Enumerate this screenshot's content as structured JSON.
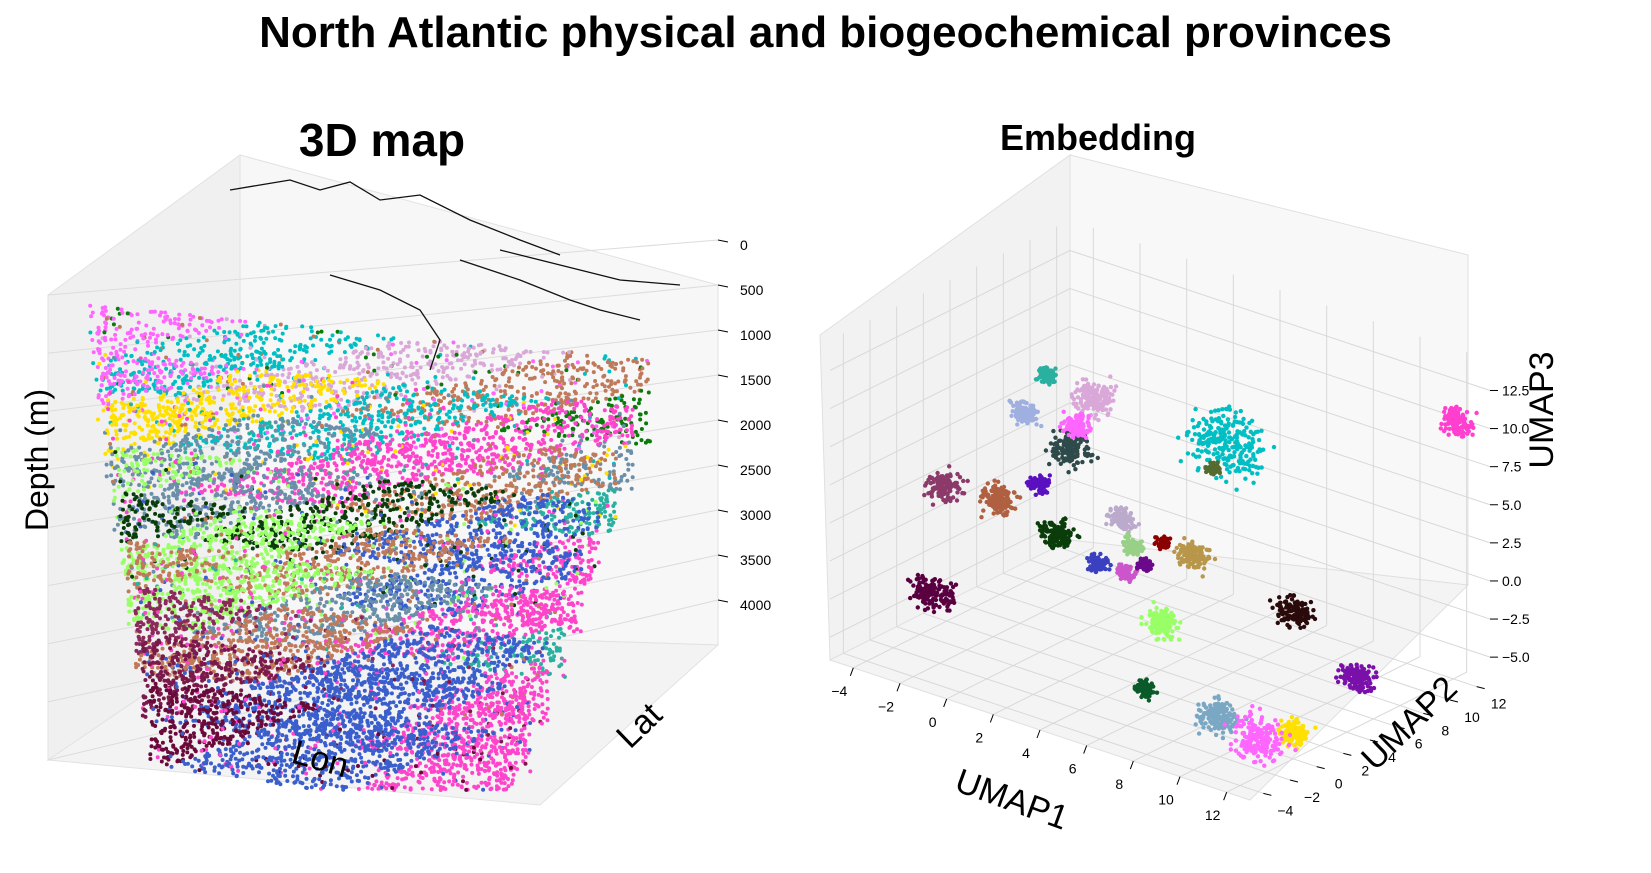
{
  "figure": {
    "title": "North Atlantic physical and biogeochemical provinces"
  },
  "chart_data": [
    {
      "type": "scatter",
      "projection": "3d",
      "title": "3D map",
      "xlabel": "Lon",
      "ylabel": "Lat",
      "zlabel": "Depth (m)",
      "z_ticks": [
        0,
        500,
        1000,
        1500,
        2000,
        2500,
        3000,
        3500,
        4000
      ],
      "z_inverted": true,
      "grid": true,
      "coastline": true,
      "layer_depths": [
        0,
        500,
        1000,
        1500,
        2000,
        2500,
        3000,
        3500,
        4000
      ],
      "layers": [
        {
          "depth": 0,
          "clusters": [
            "#ff66ff",
            "#00bfc4",
            "#d9a8d9",
            "#c07a5a",
            "#0a7a0a"
          ]
        },
        {
          "depth": 500,
          "clusters": [
            "#ff66ff",
            "#ffe000",
            "#00bfc4",
            "#ff44cc",
            "#6a8fa8"
          ]
        },
        {
          "depth": 1000,
          "clusters": [
            "#ffe000",
            "#6a8fa8",
            "#ff44cc",
            "#c07a5a",
            "#2ab0a0"
          ]
        },
        {
          "depth": 1500,
          "clusters": [
            "#99ff66",
            "#6a8fa8",
            "#0a3d0a",
            "#3a5fcd",
            "#ff44cc"
          ]
        },
        {
          "depth": 2000,
          "clusters": [
            "#0a3d0a",
            "#99ff66",
            "#c07a5a",
            "#3a5fcd",
            "#ff44cc"
          ]
        },
        {
          "depth": 2500,
          "clusters": [
            "#c07a5a",
            "#99ff66",
            "#6a8fa8",
            "#ff44cc",
            "#2ab0a0"
          ]
        },
        {
          "depth": 3000,
          "clusters": [
            "#8b2a5a",
            "#c07a5a",
            "#3a5fcd",
            "#ff44cc"
          ]
        },
        {
          "depth": 3500,
          "clusters": [
            "#7a1a4a",
            "#3a5fcd",
            "#ff44cc"
          ]
        },
        {
          "depth": 4000,
          "clusters": [
            "#6a0a3a",
            "#3a5fcd",
            "#ff44cc"
          ]
        }
      ]
    },
    {
      "type": "scatter",
      "projection": "3d",
      "title": "Embedding",
      "xlabel": "UMAP1",
      "ylabel": "UMAP2",
      "zlabel": "UMAP3",
      "x_ticks": [
        -4,
        -2,
        0,
        2,
        4,
        6,
        8,
        10,
        12
      ],
      "y_ticks": [
        -4,
        -2,
        0,
        2,
        4,
        6,
        8,
        10,
        12
      ],
      "z_ticks": [
        -5.0,
        -2.5,
        0.0,
        2.5,
        5.0,
        7.5,
        10.0,
        12.5
      ],
      "z_tick_labels": [
        "−5.0",
        "−2.5",
        "0.0",
        "2.5",
        "5.0",
        "7.5",
        "10.0",
        "12.5"
      ],
      "x_tick_labels": [
        "−4",
        "−2",
        "0",
        "2",
        "4",
        "6",
        "8",
        "10",
        "12"
      ],
      "y_tick_labels": [
        "−4",
        "−2",
        "0",
        "2",
        "4",
        "6",
        "8",
        "10",
        "12"
      ],
      "xlim": [
        -5,
        13
      ],
      "ylim": [
        -5,
        13
      ],
      "zlim": [
        -6.5,
        14.5
      ],
      "grid": true,
      "clusters": [
        {
          "color": "#ff3fcf",
          "center": [
            13.0,
            10.5,
            11.5
          ],
          "spread": 0.5
        },
        {
          "color": "#00bfc4",
          "center": [
            6.5,
            4.5,
            9.5
          ],
          "spread": 1.2
        },
        {
          "color": "#d9a8d9",
          "center": [
            2.0,
            2.5,
            11.0
          ],
          "spread": 0.6
        },
        {
          "color": "#2ab0a0",
          "center": [
            0.0,
            2.5,
            11.5
          ],
          "spread": 0.3
        },
        {
          "color": "#8b3a6a",
          "center": [
            -3.5,
            1.0,
            3.0
          ],
          "spread": 0.5
        },
        {
          "color": "#5a0040",
          "center": [
            -3.5,
            0.0,
            -3.5
          ],
          "spread": 0.6
        },
        {
          "color": "#b06040",
          "center": [
            -1.5,
            1.5,
            3.0
          ],
          "spread": 0.5
        },
        {
          "color": "#2e4a4a",
          "center": [
            1.0,
            2.5,
            7.0
          ],
          "spread": 0.6
        },
        {
          "color": "#ff66ff",
          "center": [
            1.0,
            3.0,
            8.5
          ],
          "spread": 0.4
        },
        {
          "color": "#9fb0e0",
          "center": [
            -1.0,
            2.5,
            8.5
          ],
          "spread": 0.4
        },
        {
          "color": "#5a10c0",
          "center": [
            0.0,
            2.0,
            4.5
          ],
          "spread": 0.3
        },
        {
          "color": "#0a3d0a",
          "center": [
            1.0,
            1.5,
            2.0
          ],
          "spread": 0.5
        },
        {
          "color": "#3a40c0",
          "center": [
            2.5,
            2.0,
            0.5
          ],
          "spread": 0.3
        },
        {
          "color": "#bbaacc",
          "center": [
            3.5,
            2.0,
            4.0
          ],
          "spread": 0.4
        },
        {
          "color": "#99d088",
          "center": [
            4.0,
            2.0,
            2.5
          ],
          "spread": 0.3
        },
        {
          "color": "#cc55cc",
          "center": [
            4.0,
            1.5,
            1.0
          ],
          "spread": 0.3
        },
        {
          "color": "#6a0a8a",
          "center": [
            4.5,
            2.0,
            1.5
          ],
          "spread": 0.2
        },
        {
          "color": "#8b0000",
          "center": [
            5.0,
            2.5,
            3.0
          ],
          "spread": 0.2
        },
        {
          "color": "#b8964a",
          "center": [
            6.0,
            3.0,
            2.5
          ],
          "spread": 0.5
        },
        {
          "color": "#99ff66",
          "center": [
            5.5,
            1.5,
            -1.5
          ],
          "spread": 0.5
        },
        {
          "color": "#556b2f",
          "center": [
            6.0,
            4.5,
            7.5
          ],
          "spread": 0.2
        },
        {
          "color": "#2a0a0a",
          "center": [
            10.0,
            3.5,
            0.5
          ],
          "spread": 0.5
        },
        {
          "color": "#0a5a2a",
          "center": [
            6.5,
            -1.5,
            -4.0
          ],
          "spread": 0.3
        },
        {
          "color": "#7aa8c4",
          "center": [
            9.0,
            -0.5,
            -5.0
          ],
          "spread": 0.6
        },
        {
          "color": "#ffe000",
          "center": [
            11.5,
            1.0,
            -5.5
          ],
          "spread": 0.5
        },
        {
          "color": "#7a10aa",
          "center": [
            13.0,
            3.0,
            -2.0
          ],
          "spread": 0.5
        },
        {
          "color": "#ff66ff",
          "center": [
            10.5,
            0.0,
            -6.0
          ],
          "spread": 0.8
        }
      ]
    }
  ]
}
